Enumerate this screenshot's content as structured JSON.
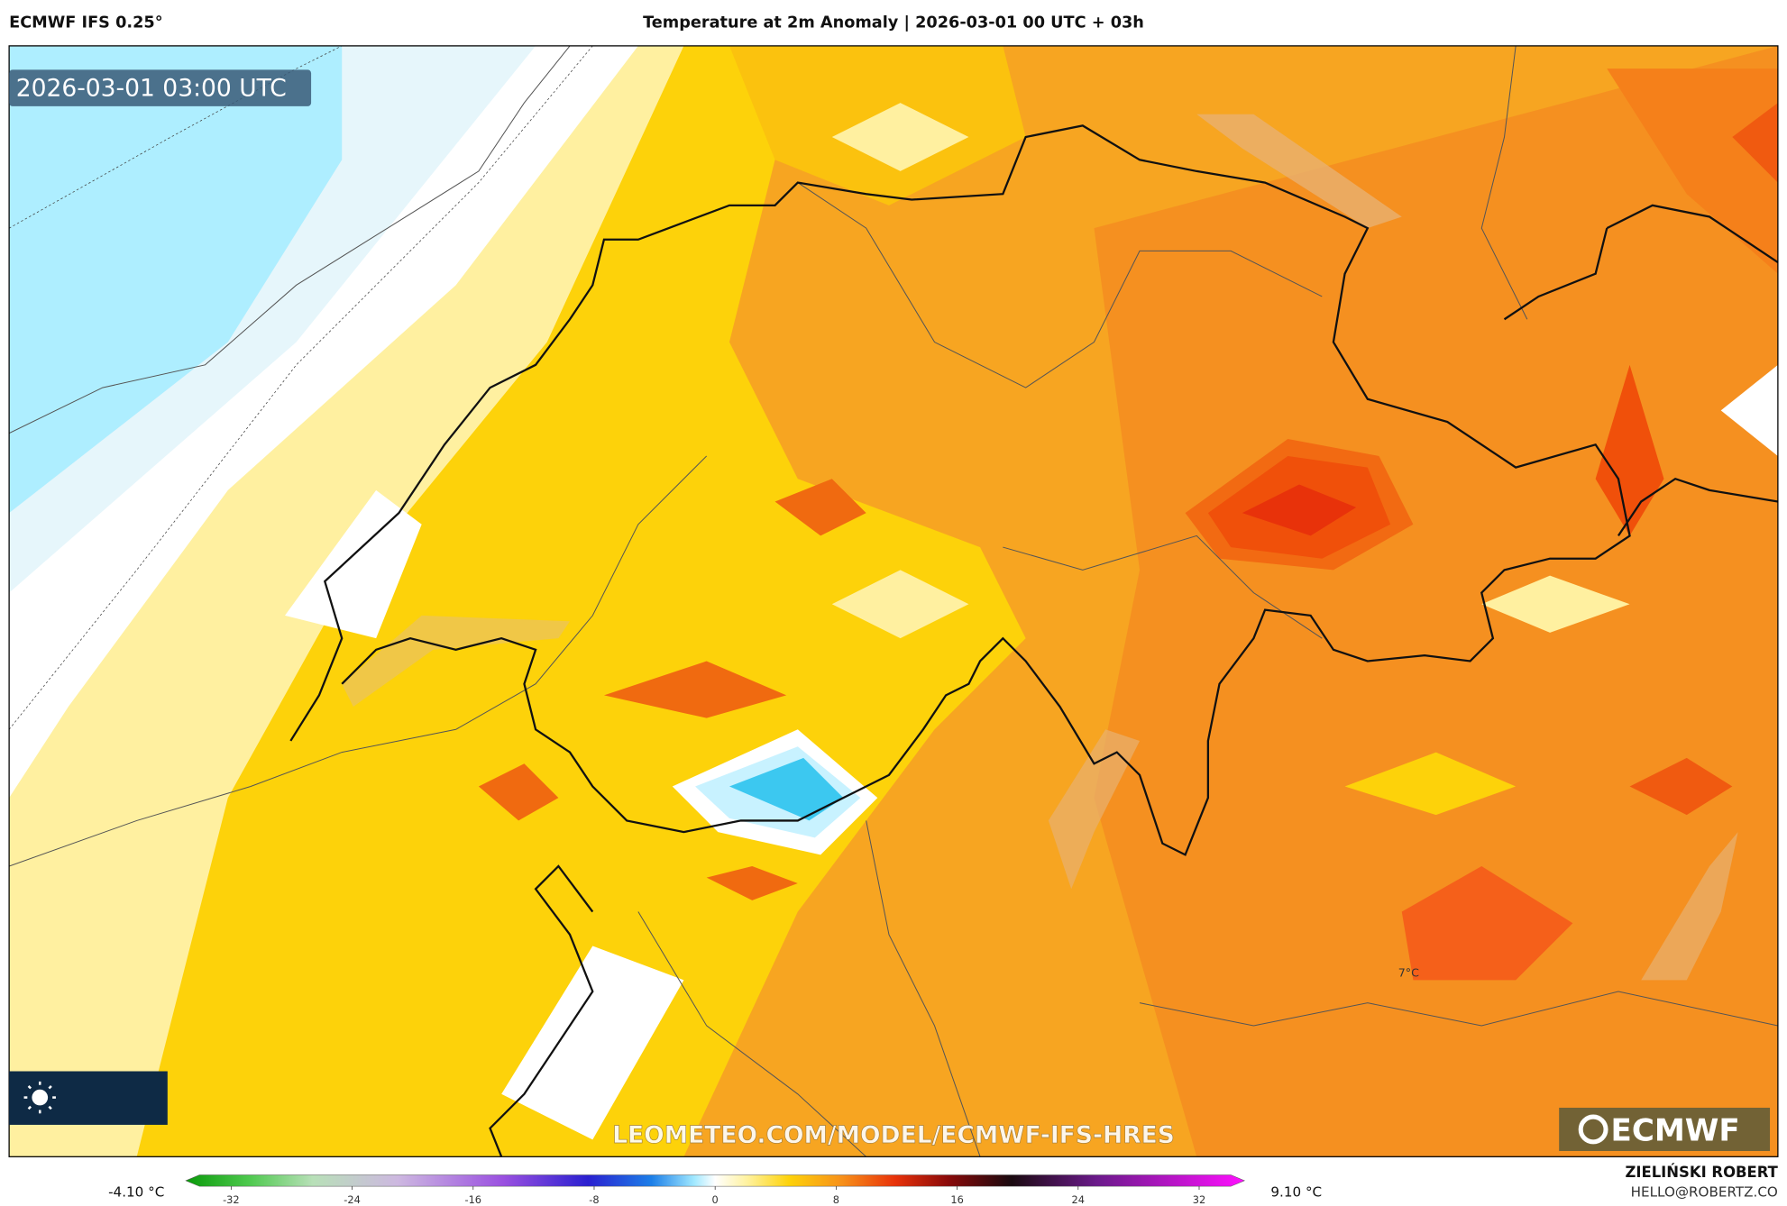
{
  "header": {
    "left": "ECMWF IFS 0.25°",
    "title": "Temperature at 2m Anomaly | 2026-03-01 00 UTC + 03h"
  },
  "map": {
    "timestamp": "2026-03-01 03:00 UTC",
    "watermark": "LEOMETEO.COM/MODEL/ECMWF-IFS-HRES",
    "logo": "ECMWF",
    "label": "7°C"
  },
  "colorbar": {
    "min_label": "-4.10 °C",
    "max_label": "9.10 °C",
    "lim": [
      -35,
      35
    ],
    "ticks": [
      -32,
      -24,
      -16,
      -8,
      0,
      8,
      16,
      24,
      32
    ]
  },
  "credits": {
    "name": "ZIELIŃSKI ROBERT",
    "email": "HELLO@ROBERTZ.CO"
  }
}
